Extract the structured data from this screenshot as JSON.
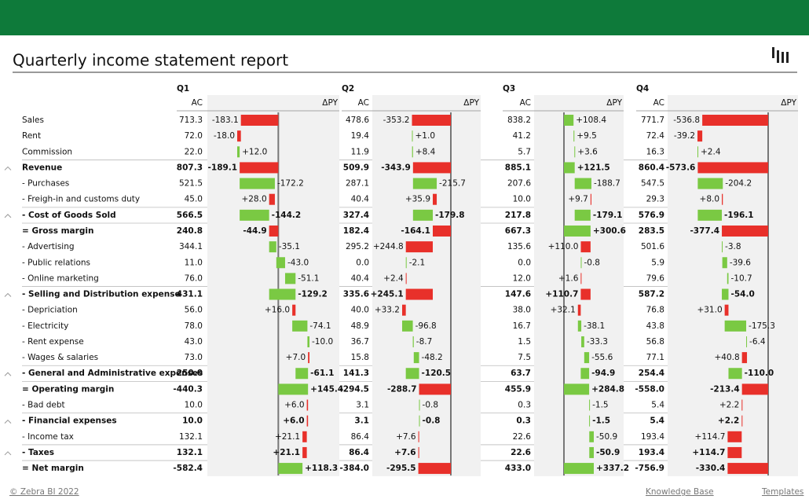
{
  "header": {
    "title": "Quarterly income statement report"
  },
  "table": {
    "columns": {
      "ac": "AC",
      "dpy": "ΔPY"
    },
    "colors": {
      "good": "#7ac943",
      "bad": "#e8302a"
    },
    "rows": [
      {
        "label": "Sales",
        "kind": "item",
        "sign": 1
      },
      {
        "label": "Rent",
        "kind": "item",
        "sign": 1
      },
      {
        "label": "Commission",
        "kind": "item",
        "sign": 1
      },
      {
        "label": "Revenue",
        "kind": "subtotal",
        "sign": 1
      },
      {
        "label": "- Purchases",
        "kind": "item",
        "sign": -1
      },
      {
        "label": "- Freigh-in and customs duty",
        "kind": "item",
        "sign": -1
      },
      {
        "label": "- Cost of Goods Sold",
        "kind": "subtotal",
        "sign": -1
      },
      {
        "label": "= Gross margin",
        "kind": "result",
        "sign": 1
      },
      {
        "label": "- Advertising",
        "kind": "item",
        "sign": -1
      },
      {
        "label": "- Public relations",
        "kind": "item",
        "sign": -1
      },
      {
        "label": "- Online marketing",
        "kind": "item",
        "sign": -1
      },
      {
        "label": "- Selling and Distribution expense",
        "kind": "subtotal",
        "sign": -1
      },
      {
        "label": "- Depriciation",
        "kind": "item",
        "sign": -1
      },
      {
        "label": "- Electricity",
        "kind": "item",
        "sign": -1
      },
      {
        "label": "- Rent expense",
        "kind": "item",
        "sign": -1
      },
      {
        "label": "- Wages & salaries",
        "kind": "item",
        "sign": -1
      },
      {
        "label": "- General and Administrative expenses",
        "kind": "subtotal",
        "sign": -1
      },
      {
        "label": "= Operating margin",
        "kind": "result",
        "sign": 1
      },
      {
        "label": "- Bad debt",
        "kind": "item",
        "sign": -1
      },
      {
        "label": "- Financial expenses",
        "kind": "subtotal",
        "sign": -1
      },
      {
        "label": "- Income tax",
        "kind": "item",
        "sign": -1
      },
      {
        "label": "- Taxes",
        "kind": "subtotal",
        "sign": -1
      },
      {
        "label": "= Net margin",
        "kind": "result",
        "sign": 1
      }
    ],
    "quarters": [
      {
        "name": "Q1",
        "ac": [
          "713.3",
          "72.0",
          "22.0",
          "807.3",
          "521.5",
          "45.0",
          "566.5",
          "240.8",
          "344.1",
          "11.0",
          "76.0",
          "431.1",
          "56.0",
          "78.0",
          "43.0",
          "73.0",
          "250.0",
          "-440.3",
          "10.0",
          "10.0",
          "132.1",
          "132.1",
          "-582.4"
        ],
        "dpy": [
          -183.1,
          -18,
          12,
          -189.1,
          -172.2,
          28,
          -144.2,
          -44.9,
          -35.1,
          -43,
          -51.1,
          -129.2,
          16,
          -74.1,
          -10,
          7,
          -61.1,
          145.4,
          6,
          6,
          21.1,
          21.1,
          118.3
        ],
        "dpy_labels": [
          "-183.1",
          "-18.0",
          "+12.0",
          "-189.1",
          "-172.2",
          "+28.0",
          "-144.2",
          "-44.9",
          "-35.1",
          "-43.0",
          "-51.1",
          "-129.2",
          "+16.0",
          "-74.1",
          "-10.0",
          "+7.0",
          "-61.1",
          "+145.4",
          "+6.0",
          "+6.0",
          "+21.1",
          "+21.1",
          "+118.3"
        ]
      },
      {
        "name": "Q2",
        "ac": [
          "478.6",
          "19.4",
          "11.9",
          "509.9",
          "287.1",
          "40.4",
          "327.4",
          "182.4",
          "295.2",
          "0.0",
          "40.4",
          "335.6",
          "40.0",
          "48.9",
          "36.7",
          "15.8",
          "141.3",
          "-294.5",
          "3.1",
          "3.1",
          "86.4",
          "86.4",
          "-384.0"
        ],
        "dpy": [
          -353.2,
          1,
          8.4,
          -343.9,
          -215.7,
          35.9,
          -179.8,
          -164.1,
          244.8,
          -2.1,
          2.4,
          245.1,
          33.2,
          -96.8,
          -8.7,
          -48.2,
          -120.5,
          -288.7,
          -0.8,
          -0.8,
          7.6,
          7.6,
          -295.5
        ],
        "dpy_labels": [
          "-353.2",
          "+1.0",
          "+8.4",
          "-343.9",
          "-215.7",
          "+35.9",
          "-179.8",
          "-164.1",
          "+244.8",
          "-2.1",
          "+2.4",
          "+245.1",
          "+33.2",
          "-96.8",
          "-8.7",
          "-48.2",
          "-120.5",
          "-288.7",
          "-0.8",
          "-0.8",
          "+7.6",
          "+7.6",
          "-295.5"
        ]
      },
      {
        "name": "Q3",
        "ac": [
          "838.2",
          "41.2",
          "5.7",
          "885.1",
          "207.6",
          "10.0",
          "217.8",
          "667.3",
          "135.6",
          "0.0",
          "12.0",
          "147.6",
          "38.0",
          "16.7",
          "1.5",
          "7.5",
          "63.7",
          "455.9",
          "0.3",
          "0.3",
          "22.6",
          "22.6",
          "433.0"
        ],
        "dpy": [
          108.4,
          9.5,
          3.6,
          121.5,
          -188.7,
          9.7,
          -179.1,
          300.6,
          110,
          -0.8,
          1.6,
          110.7,
          32.1,
          -38.1,
          -33.3,
          -55.6,
          -94.9,
          284.8,
          -1.5,
          -1.5,
          -50.9,
          -50.9,
          337.2
        ],
        "dpy_labels": [
          "+108.4",
          "+9.5",
          "+3.6",
          "+121.5",
          "-188.7",
          "+9.7",
          "-179.1",
          "+300.6",
          "+110.0",
          "-0.8",
          "+1.6",
          "+110.7",
          "+32.1",
          "-38.1",
          "-33.3",
          "-55.6",
          "-94.9",
          "+284.8",
          "-1.5",
          "-1.5",
          "-50.9",
          "-50.9",
          "+337.2"
        ]
      },
      {
        "name": "Q4",
        "ac": [
          "771.7",
          "72.4",
          "16.3",
          "860.4",
          "547.5",
          "29.3",
          "576.9",
          "283.5",
          "501.6",
          "5.9",
          "79.6",
          "587.2",
          "76.8",
          "43.8",
          "56.8",
          "77.1",
          "254.4",
          "-558.0",
          "5.4",
          "5.4",
          "193.4",
          "193.4",
          "-756.9"
        ],
        "dpy": [
          -536.8,
          -39.2,
          2.4,
          -573.6,
          -204.2,
          8,
          -196.1,
          -377.4,
          -3.8,
          -39.6,
          -10.7,
          -54,
          31,
          -175.3,
          -6.4,
          40.8,
          -110,
          -213.4,
          2.2,
          2.2,
          114.7,
          114.7,
          -330.4
        ],
        "dpy_labels": [
          "-536.8",
          "-39.2",
          "+2.4",
          "-573.6",
          "-204.2",
          "+8.0",
          "-196.1",
          "-377.4",
          "-3.8",
          "-39.6",
          "-10.7",
          "-54.0",
          "+31.0",
          "-175.3",
          "-6.4",
          "+40.8",
          "-110.0",
          "-213.4",
          "+2.2",
          "+2.2",
          "+114.7",
          "+114.7",
          "-330.4"
        ]
      }
    ]
  },
  "footer": {
    "copyright": "© Zebra BI 2022",
    "links": [
      "Knowledge Base",
      "Templates"
    ]
  }
}
